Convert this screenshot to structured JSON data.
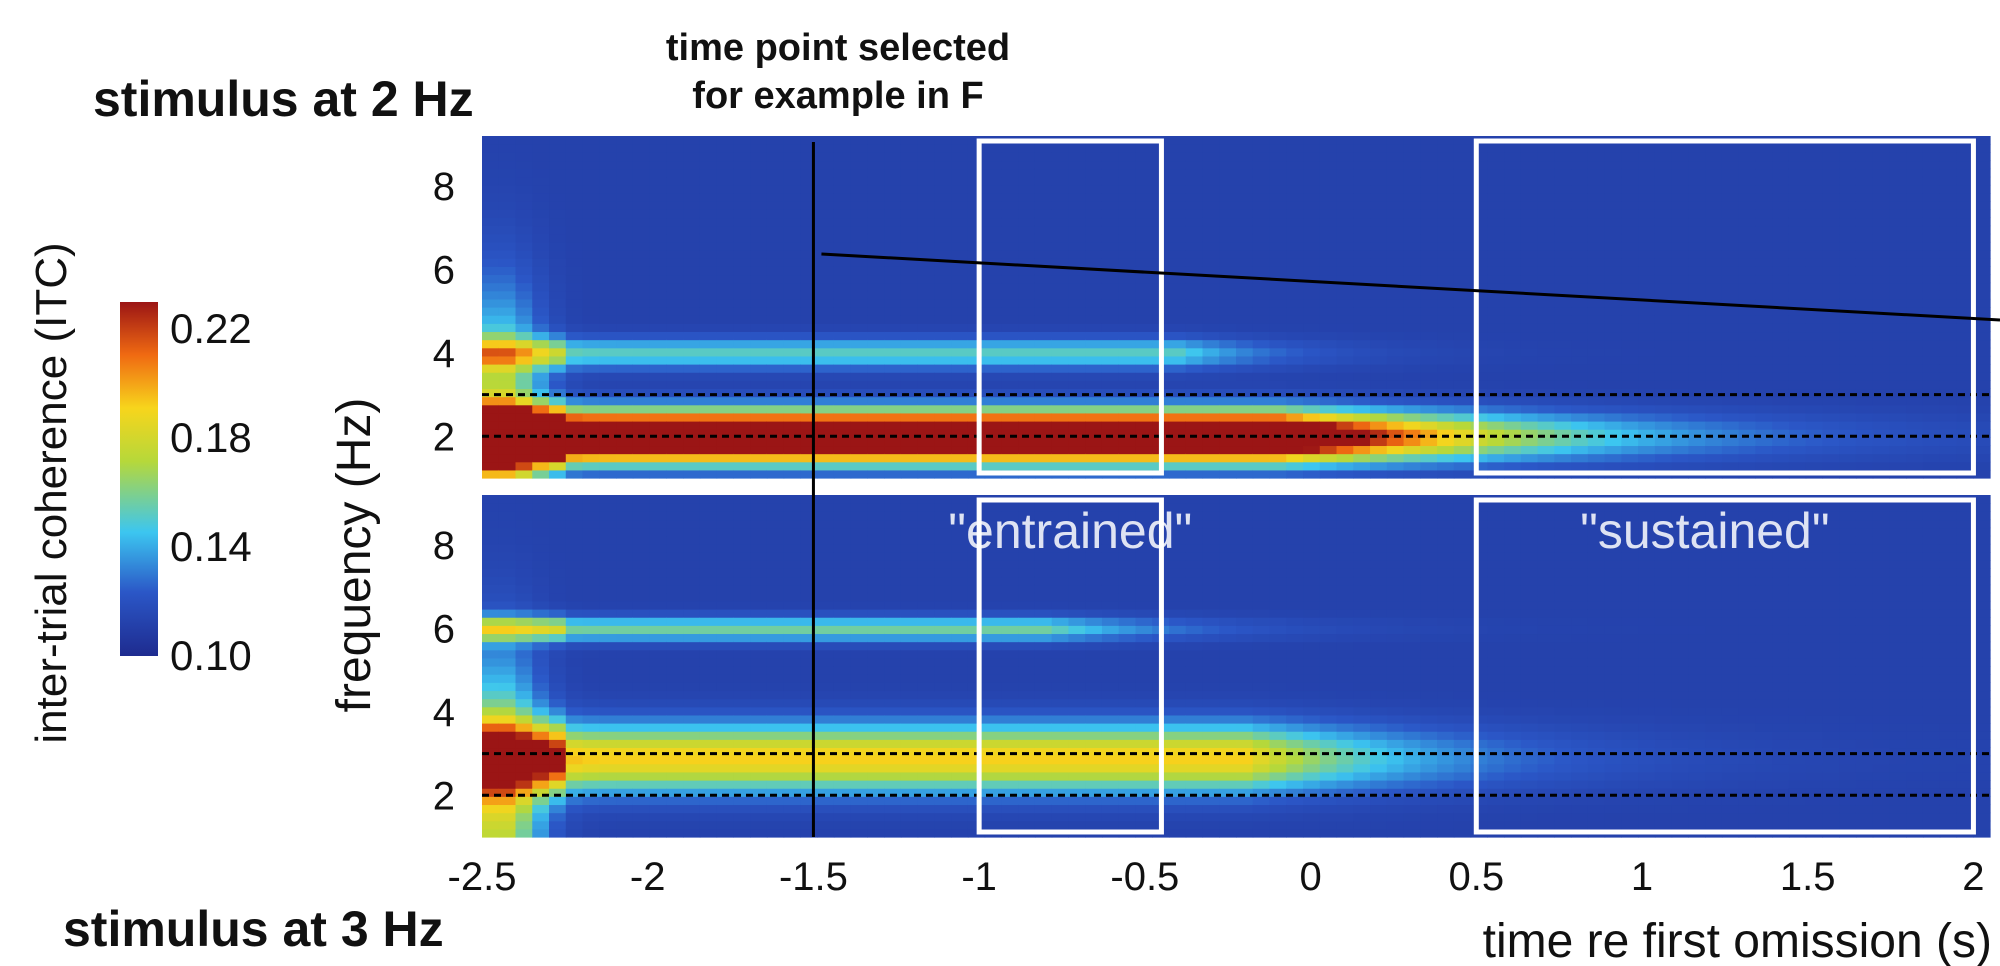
{
  "chart_data": {
    "type": "heatmap",
    "panel_top_label": "stimulus at 2 Hz",
    "panel_bottom_label": "stimulus at 3 Hz",
    "annotation_top": [
      "time point selected",
      "for example in F"
    ],
    "xlabel": "time re first omission (s)",
    "ylabel": "frequency (Hz)",
    "x_ticks": [
      "-2.5",
      "-2",
      "-1.5",
      "-1",
      "-0.5",
      "0",
      "0.5",
      "1",
      "1.5",
      "2"
    ],
    "x_tick_values": [
      -2.5,
      -2,
      -1.5,
      -1,
      -0.5,
      0,
      0.5,
      1,
      1.5,
      2
    ],
    "xlim": [
      -2.5,
      2.05
    ],
    "y_ticks": [
      "2",
      "4",
      "6",
      "8"
    ],
    "y_tick_values": [
      2,
      4,
      6,
      8
    ],
    "ylim": [
      1,
      9.2
    ],
    "colorbar": {
      "label": "inter-trial coherence (ITC)",
      "ticks": [
        "0.22",
        "0.18",
        "0.14",
        "0.10"
      ],
      "tick_values": [
        0.22,
        0.18,
        0.14,
        0.1
      ],
      "range": [
        0.1,
        0.23
      ],
      "colormap": "jet"
    },
    "selected_time": -1.5,
    "windows": [
      {
        "label": "\"entrained\"",
        "x_range": [
          -1.0,
          -0.45
        ]
      },
      {
        "label": "\"sustained\"",
        "x_range": [
          0.5,
          2.0
        ]
      }
    ],
    "panels": [
      {
        "stimulus_hz": 2,
        "dashed_lines_hz": [
          2,
          3
        ],
        "bands": [
          {
            "freq_hz": 2,
            "sigma": 0.4,
            "peak": 0.19,
            "x_end": -0.1,
            "decay_s": 0.6
          },
          {
            "freq_hz": 4,
            "sigma": 0.25,
            "peak": 0.04,
            "x_end": -0.4,
            "decay_s": 0.3
          }
        ]
      },
      {
        "stimulus_hz": 3,
        "dashed_lines_hz": [
          2,
          3
        ],
        "bands": [
          {
            "freq_hz": 2.9,
            "sigma": 0.55,
            "peak": 0.08,
            "x_end": -0.2,
            "decay_s": 0.5
          },
          {
            "freq_hz": 6,
            "sigma": 0.2,
            "peak": 0.045,
            "x_end": -0.8,
            "decay_s": 0.4
          }
        ]
      }
    ]
  }
}
